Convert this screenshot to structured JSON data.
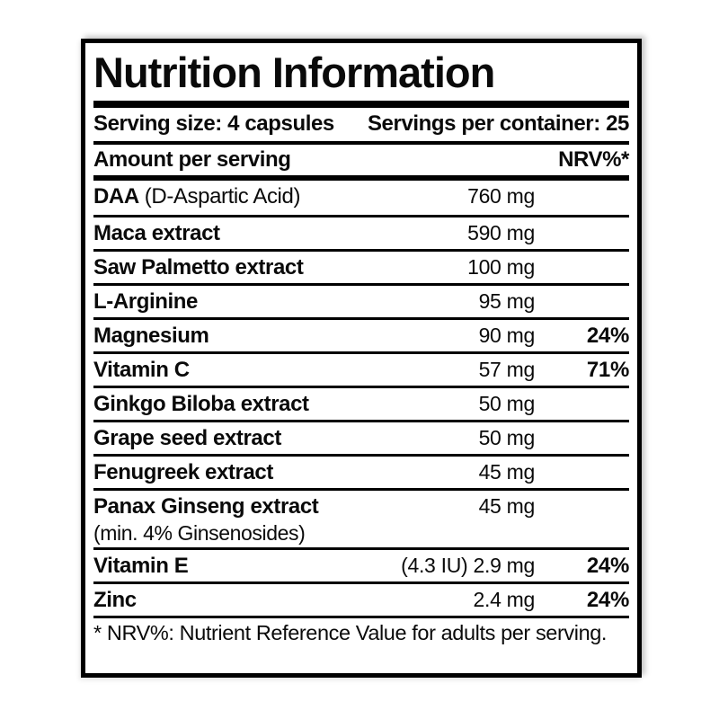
{
  "label": {
    "title": "Nutrition Information",
    "serving_size": "Serving size: 4 capsules",
    "servings_per_container": "Servings per container: 25",
    "header": {
      "amount_col": "Amount per serving",
      "nrv_col": "NRV%*"
    },
    "rows": [
      {
        "name": "DAA",
        "suffix": "(D-Aspartic Acid)",
        "note": "",
        "amount": "760 mg",
        "nrv": ""
      },
      {
        "name": "Maca extract",
        "suffix": "",
        "note": "",
        "amount": "590 mg",
        "nrv": ""
      },
      {
        "name": "Saw Palmetto extract",
        "suffix": "",
        "note": "",
        "amount": "100 mg",
        "nrv": ""
      },
      {
        "name": "L-Arginine",
        "suffix": "",
        "note": "",
        "amount": "95 mg",
        "nrv": ""
      },
      {
        "name": "Magnesium",
        "suffix": "",
        "note": "",
        "amount": "90 mg",
        "nrv": "24%"
      },
      {
        "name": "Vitamin C",
        "suffix": "",
        "note": "",
        "amount": "57 mg",
        "nrv": "71%"
      },
      {
        "name": "Ginkgo Biloba extract",
        "suffix": "",
        "note": "",
        "amount": "50 mg",
        "nrv": ""
      },
      {
        "name": "Grape seed extract",
        "suffix": "",
        "note": "",
        "amount": "50 mg",
        "nrv": ""
      },
      {
        "name": "Fenugreek extract",
        "suffix": "",
        "note": "",
        "amount": "45 mg",
        "nrv": ""
      },
      {
        "name": "Panax Ginseng extract",
        "suffix": "",
        "note": "(min. 4% Ginsenosides)",
        "amount": "45 mg",
        "nrv": ""
      },
      {
        "name": "Vitamin E",
        "suffix": "",
        "note": "",
        "amount": "(4.3 IU) 2.9 mg",
        "nrv": "24%"
      },
      {
        "name": "Zinc",
        "suffix": "",
        "note": "",
        "amount": "2.4 mg",
        "nrv": "24%"
      }
    ],
    "footnote": "* NRV%: Nutrient Reference Value for adults per serving.",
    "colors": {
      "text": "#0a0a0a",
      "border": "#000000",
      "background": "#ffffff"
    }
  }
}
